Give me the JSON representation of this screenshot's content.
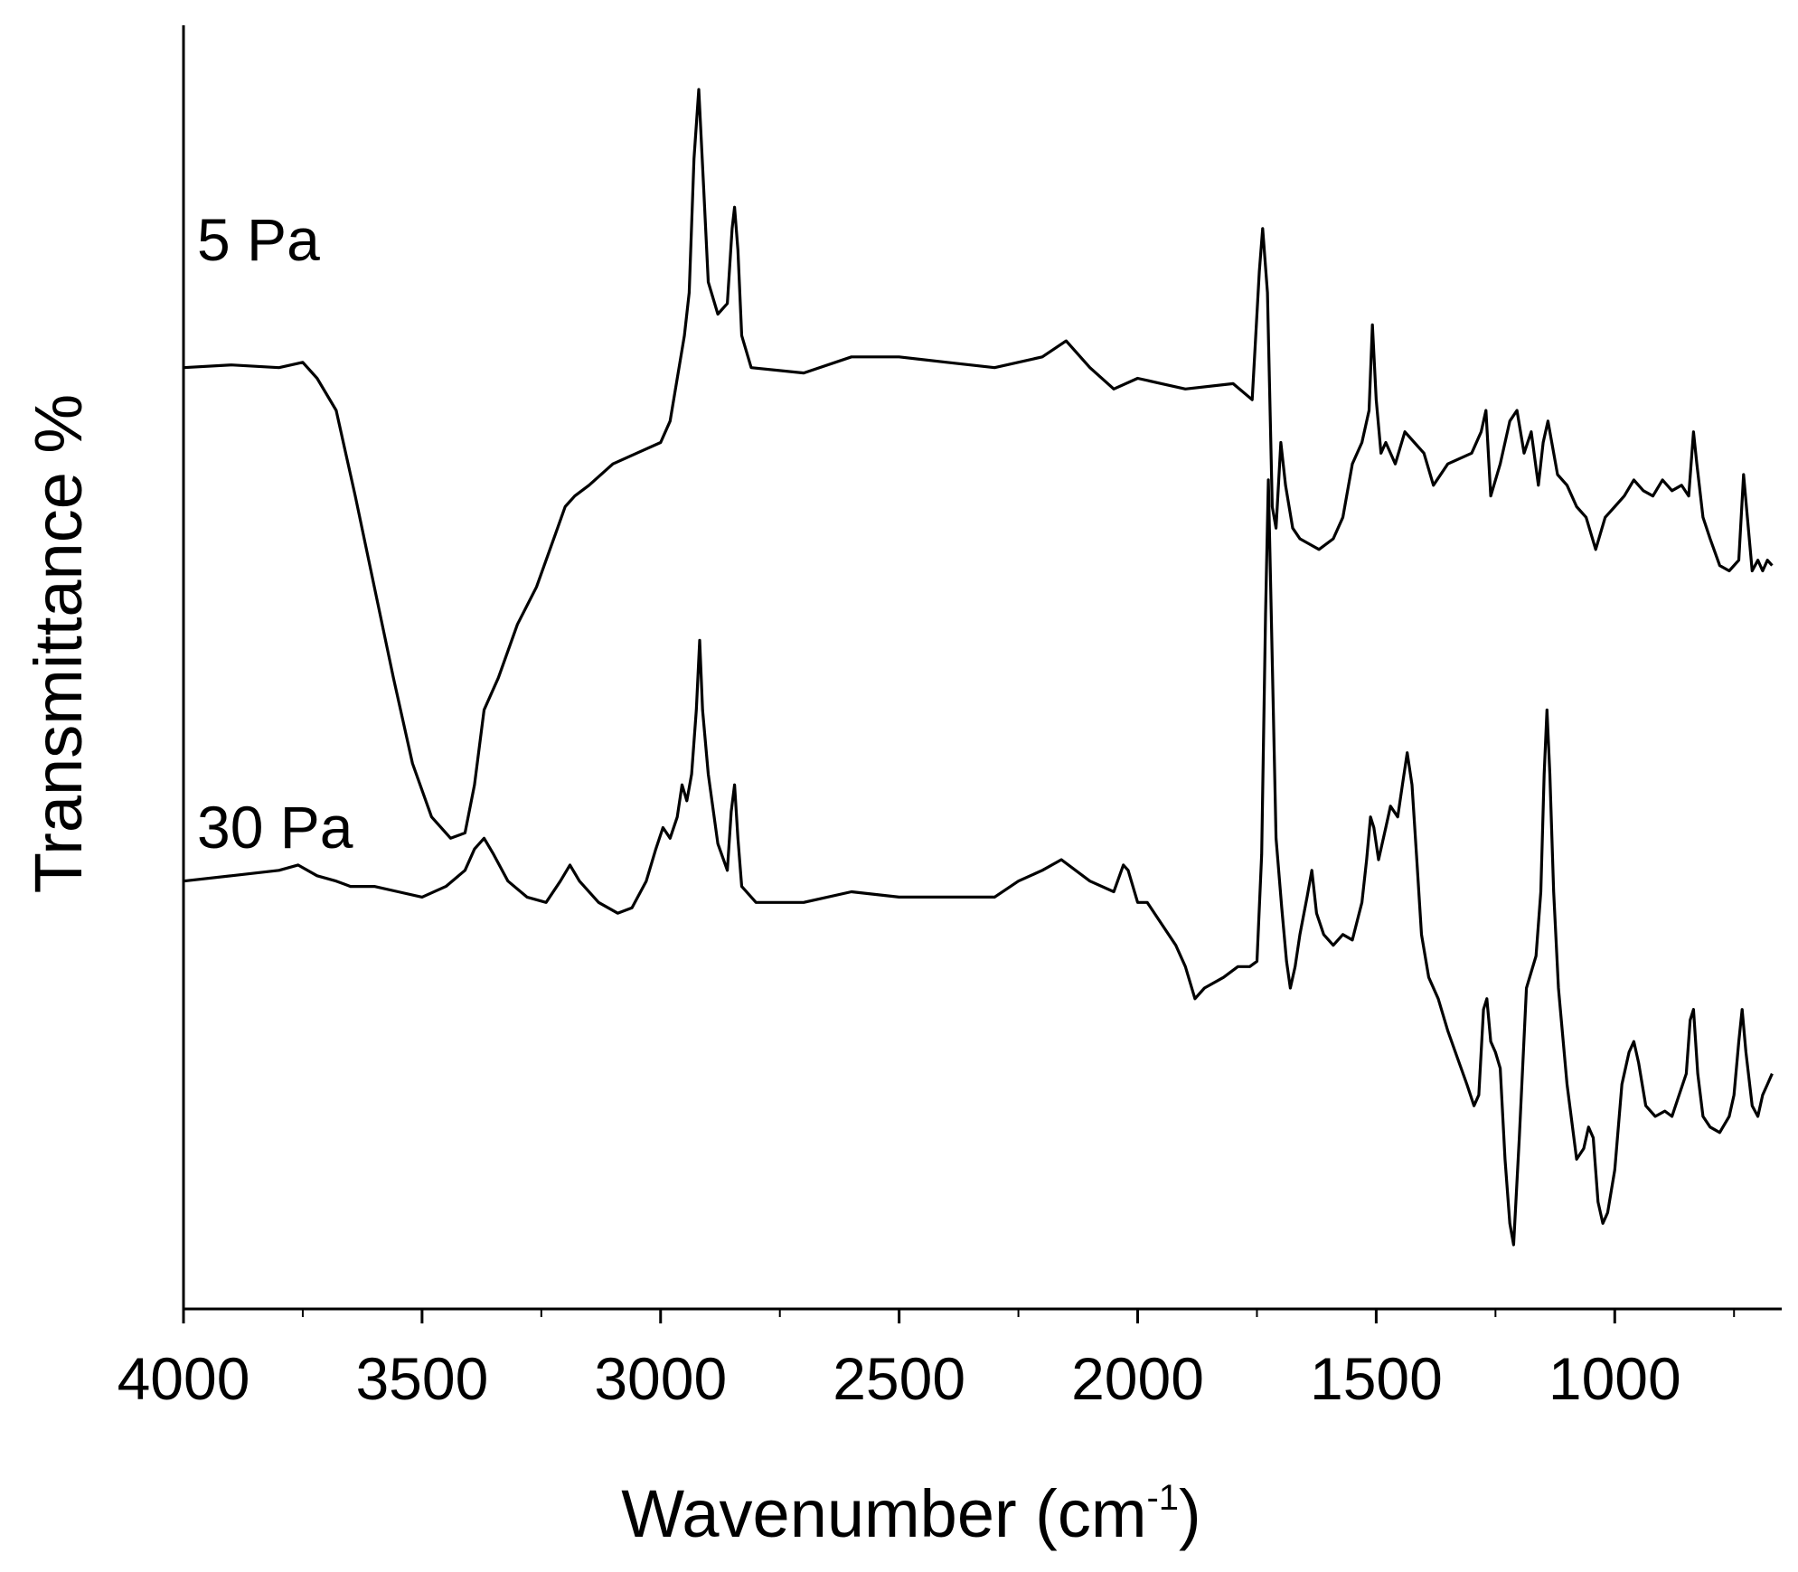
{
  "chart_data": {
    "type": "line",
    "title": "",
    "xlabel": {
      "text": "Wavenumber (cm",
      "superscript": "-1",
      "suffix": ")"
    },
    "ylabel": "Transmittance %",
    "x_reversed": true,
    "xlim": [
      4000,
      650
    ],
    "xticks": [
      4000,
      3500,
      3000,
      2500,
      2000,
      1500,
      1000
    ],
    "xtick_labels": [
      "4000",
      "3500",
      "3000",
      "2500",
      "2000",
      "1500",
      "1000"
    ],
    "y_units": "arbitrary (offset, no y tick labels)",
    "ylim": [
      -140,
      100
    ],
    "grid": false,
    "legend": "none (labels placed beside traces)",
    "series": [
      {
        "name": "5 Pa",
        "points": [
          [
            4000,
            36
          ],
          [
            3900,
            36.5
          ],
          [
            3800,
            36
          ],
          [
            3750,
            37
          ],
          [
            3720,
            34
          ],
          [
            3680,
            28
          ],
          [
            3640,
            12
          ],
          [
            3600,
            -5
          ],
          [
            3560,
            -22
          ],
          [
            3520,
            -38
          ],
          [
            3480,
            -48
          ],
          [
            3440,
            -52
          ],
          [
            3410,
            -51
          ],
          [
            3390,
            -42
          ],
          [
            3370,
            -28
          ],
          [
            3340,
            -22
          ],
          [
            3300,
            -12
          ],
          [
            3260,
            -5
          ],
          [
            3220,
            5
          ],
          [
            3200,
            10
          ],
          [
            3180,
            12
          ],
          [
            3150,
            14
          ],
          [
            3100,
            18
          ],
          [
            3050,
            20
          ],
          [
            3000,
            22
          ],
          [
            2980,
            26
          ],
          [
            2965,
            34
          ],
          [
            2950,
            42
          ],
          [
            2940,
            50
          ],
          [
            2930,
            75
          ],
          [
            2920,
            88
          ],
          [
            2910,
            70
          ],
          [
            2900,
            52
          ],
          [
            2880,
            46
          ],
          [
            2860,
            48
          ],
          [
            2850,
            62
          ],
          [
            2845,
            66
          ],
          [
            2838,
            58
          ],
          [
            2830,
            42
          ],
          [
            2810,
            36
          ],
          [
            2700,
            35
          ],
          [
            2600,
            38
          ],
          [
            2500,
            38
          ],
          [
            2400,
            37
          ],
          [
            2300,
            36
          ],
          [
            2200,
            38
          ],
          [
            2150,
            41
          ],
          [
            2100,
            36
          ],
          [
            2050,
            32
          ],
          [
            2000,
            34
          ],
          [
            1950,
            33
          ],
          [
            1900,
            32
          ],
          [
            1800,
            33
          ],
          [
            1760,
            30
          ],
          [
            1745,
            54
          ],
          [
            1738,
            62
          ],
          [
            1728,
            50
          ],
          [
            1718,
            10
          ],
          [
            1710,
            6
          ],
          [
            1700,
            22
          ],
          [
            1690,
            14
          ],
          [
            1675,
            6
          ],
          [
            1660,
            4
          ],
          [
            1640,
            3
          ],
          [
            1620,
            2
          ],
          [
            1590,
            4
          ],
          [
            1570,
            8
          ],
          [
            1550,
            18
          ],
          [
            1530,
            22
          ],
          [
            1515,
            28
          ],
          [
            1508,
            44
          ],
          [
            1500,
            30
          ],
          [
            1490,
            20
          ],
          [
            1480,
            22
          ],
          [
            1460,
            18
          ],
          [
            1440,
            24
          ],
          [
            1420,
            22
          ],
          [
            1400,
            20
          ],
          [
            1380,
            14
          ],
          [
            1350,
            18
          ],
          [
            1300,
            20
          ],
          [
            1280,
            24
          ],
          [
            1270,
            28
          ],
          [
            1260,
            12
          ],
          [
            1240,
            18
          ],
          [
            1220,
            26
          ],
          [
            1205,
            28
          ],
          [
            1190,
            20
          ],
          [
            1175,
            24
          ],
          [
            1160,
            14
          ],
          [
            1150,
            22
          ],
          [
            1140,
            26
          ],
          [
            1120,
            16
          ],
          [
            1100,
            14
          ],
          [
            1080,
            10
          ],
          [
            1060,
            8
          ],
          [
            1040,
            2
          ],
          [
            1020,
            8
          ],
          [
            1000,
            10
          ],
          [
            980,
            12
          ],
          [
            960,
            15
          ],
          [
            940,
            13
          ],
          [
            920,
            12
          ],
          [
            900,
            15
          ],
          [
            880,
            13
          ],
          [
            860,
            14
          ],
          [
            845,
            12
          ],
          [
            835,
            24
          ],
          [
            828,
            18
          ],
          [
            815,
            8
          ],
          [
            800,
            4
          ],
          [
            780,
            -1
          ],
          [
            760,
            -2
          ],
          [
            740,
            0
          ],
          [
            730,
            16
          ],
          [
            722,
            8
          ],
          [
            712,
            -2
          ],
          [
            700,
            0
          ],
          [
            690,
            -2
          ],
          [
            680,
            0
          ],
          [
            670,
            -1
          ]
        ]
      },
      {
        "name": "30 Pa",
        "points": [
          [
            4000,
            -60
          ],
          [
            3900,
            -59
          ],
          [
            3800,
            -58
          ],
          [
            3760,
            -57
          ],
          [
            3720,
            -59
          ],
          [
            3680,
            -60
          ],
          [
            3650,
            -61
          ],
          [
            3600,
            -61
          ],
          [
            3550,
            -62
          ],
          [
            3500,
            -63
          ],
          [
            3450,
            -61
          ],
          [
            3410,
            -58
          ],
          [
            3390,
            -54
          ],
          [
            3370,
            -52
          ],
          [
            3350,
            -55
          ],
          [
            3320,
            -60
          ],
          [
            3280,
            -63
          ],
          [
            3240,
            -64
          ],
          [
            3210,
            -60
          ],
          [
            3190,
            -57
          ],
          [
            3170,
            -60
          ],
          [
            3130,
            -64
          ],
          [
            3090,
            -66
          ],
          [
            3060,
            -65
          ],
          [
            3030,
            -60
          ],
          [
            3010,
            -54
          ],
          [
            2995,
            -50
          ],
          [
            2980,
            -52
          ],
          [
            2965,
            -48
          ],
          [
            2955,
            -42
          ],
          [
            2945,
            -45
          ],
          [
            2935,
            -40
          ],
          [
            2925,
            -28
          ],
          [
            2918,
            -15
          ],
          [
            2912,
            -28
          ],
          [
            2900,
            -40
          ],
          [
            2880,
            -53
          ],
          [
            2860,
            -58
          ],
          [
            2852,
            -47
          ],
          [
            2845,
            -42
          ],
          [
            2838,
            -52
          ],
          [
            2830,
            -61
          ],
          [
            2800,
            -64
          ],
          [
            2700,
            -64
          ],
          [
            2600,
            -62
          ],
          [
            2500,
            -63
          ],
          [
            2400,
            -63
          ],
          [
            2300,
            -63
          ],
          [
            2250,
            -60
          ],
          [
            2200,
            -58
          ],
          [
            2160,
            -56
          ],
          [
            2100,
            -60
          ],
          [
            2050,
            -62
          ],
          [
            2030,
            -57
          ],
          [
            2020,
            -58
          ],
          [
            2000,
            -64
          ],
          [
            1980,
            -64
          ],
          [
            1950,
            -68
          ],
          [
            1920,
            -72
          ],
          [
            1900,
            -76
          ],
          [
            1880,
            -82
          ],
          [
            1860,
            -80
          ],
          [
            1820,
            -78
          ],
          [
            1790,
            -76
          ],
          [
            1765,
            -76
          ],
          [
            1750,
            -75
          ],
          [
            1740,
            -55
          ],
          [
            1732,
            -10
          ],
          [
            1726,
            15
          ],
          [
            1720,
            -10
          ],
          [
            1710,
            -52
          ],
          [
            1698,
            -65
          ],
          [
            1688,
            -75
          ],
          [
            1680,
            -80
          ],
          [
            1670,
            -76
          ],
          [
            1660,
            -70
          ],
          [
            1645,
            -63
          ],
          [
            1635,
            -58
          ],
          [
            1625,
            -66
          ],
          [
            1610,
            -70
          ],
          [
            1590,
            -72
          ],
          [
            1570,
            -70
          ],
          [
            1550,
            -71
          ],
          [
            1530,
            -64
          ],
          [
            1520,
            -56
          ],
          [
            1512,
            -48
          ],
          [
            1505,
            -50
          ],
          [
            1495,
            -56
          ],
          [
            1480,
            -50
          ],
          [
            1470,
            -46
          ],
          [
            1455,
            -48
          ],
          [
            1445,
            -42
          ],
          [
            1435,
            -36
          ],
          [
            1425,
            -42
          ],
          [
            1415,
            -56
          ],
          [
            1405,
            -70
          ],
          [
            1390,
            -78
          ],
          [
            1370,
            -82
          ],
          [
            1350,
            -88
          ],
          [
            1330,
            -93
          ],
          [
            1310,
            -98
          ],
          [
            1295,
            -102
          ],
          [
            1285,
            -100
          ],
          [
            1275,
            -84
          ],
          [
            1268,
            -82
          ],
          [
            1260,
            -90
          ],
          [
            1250,
            -92
          ],
          [
            1240,
            -95
          ],
          [
            1230,
            -112
          ],
          [
            1220,
            -124
          ],
          [
            1212,
            -128
          ],
          [
            1200,
            -108
          ],
          [
            1185,
            -80
          ],
          [
            1165,
            -74
          ],
          [
            1155,
            -62
          ],
          [
            1148,
            -40
          ],
          [
            1142,
            -28
          ],
          [
            1136,
            -40
          ],
          [
            1128,
            -62
          ],
          [
            1118,
            -80
          ],
          [
            1100,
            -98
          ],
          [
            1080,
            -112
          ],
          [
            1065,
            -110
          ],
          [
            1055,
            -106
          ],
          [
            1045,
            -108
          ],
          [
            1035,
            -120
          ],
          [
            1025,
            -124
          ],
          [
            1015,
            -122
          ],
          [
            1000,
            -114
          ],
          [
            985,
            -98
          ],
          [
            970,
            -92
          ],
          [
            960,
            -90
          ],
          [
            950,
            -94
          ],
          [
            935,
            -102
          ],
          [
            915,
            -104
          ],
          [
            895,
            -103
          ],
          [
            880,
            -104
          ],
          [
            865,
            -100
          ],
          [
            850,
            -96
          ],
          [
            842,
            -86
          ],
          [
            835,
            -84
          ],
          [
            826,
            -96
          ],
          [
            815,
            -104
          ],
          [
            800,
            -106
          ],
          [
            780,
            -107
          ],
          [
            760,
            -104
          ],
          [
            750,
            -100
          ],
          [
            740,
            -90
          ],
          [
            733,
            -84
          ],
          [
            725,
            -92
          ],
          [
            712,
            -102
          ],
          [
            700,
            -104
          ],
          [
            690,
            -100
          ],
          [
            680,
            -98
          ],
          [
            670,
            -96
          ]
        ]
      }
    ]
  }
}
